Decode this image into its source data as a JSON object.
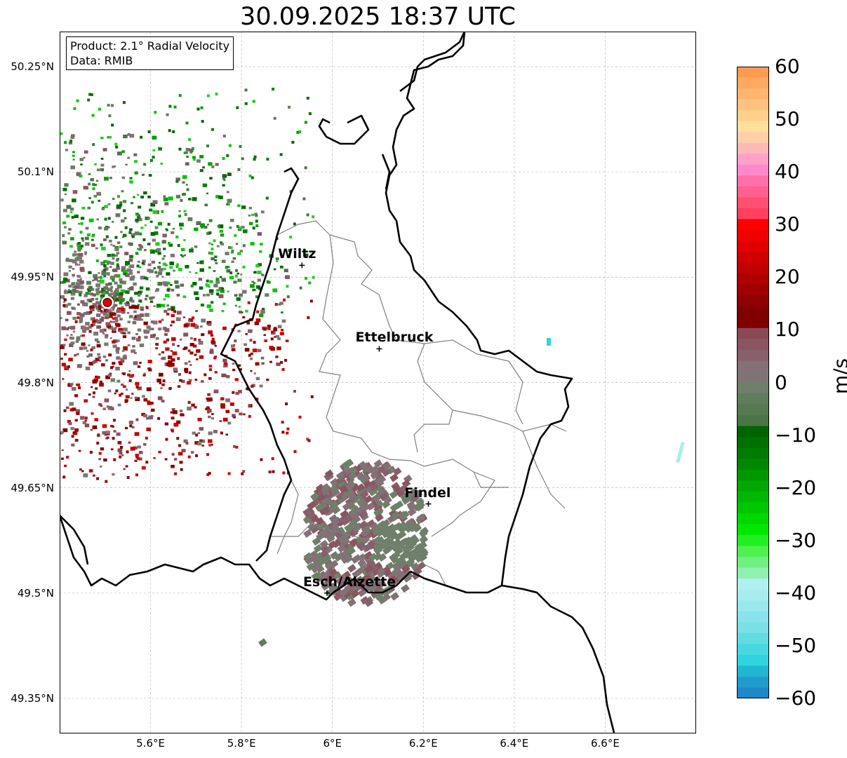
{
  "title": "30.09.2025 18:37 UTC",
  "info": {
    "product": "Product: 2.1° Radial Velocity",
    "data_source": "Data: RMIB"
  },
  "map": {
    "lon_range": [
      5.4,
      6.8
    ],
    "lat_range": [
      49.3,
      50.3
    ],
    "lat_ticks": [
      {
        "value": 50.25,
        "label": "50.25°N"
      },
      {
        "value": 50.1,
        "label": "50.1°N"
      },
      {
        "value": 49.95,
        "label": "49.95°N"
      },
      {
        "value": 49.8,
        "label": "49.8°N"
      },
      {
        "value": 49.65,
        "label": "49.65°N"
      },
      {
        "value": 49.5,
        "label": "49.5°N"
      },
      {
        "value": 49.35,
        "label": "49.35°N"
      }
    ],
    "lon_ticks": [
      {
        "value": 5.6,
        "label": "5.6°E"
      },
      {
        "value": 5.8,
        "label": "5.8°E"
      },
      {
        "value": 6.0,
        "label": "6°E"
      },
      {
        "value": 6.2,
        "label": "6.2°E"
      },
      {
        "value": 6.4,
        "label": "6.4°E"
      },
      {
        "value": 6.6,
        "label": "6.6°E"
      }
    ],
    "radar_site": {
      "lon": 5.505,
      "lat": 49.914
    },
    "cities": [
      {
        "name": "Wiltz",
        "lon": 5.933,
        "lat": 49.967
      },
      {
        "name": "Ettelbruck",
        "lon": 6.103,
        "lat": 49.848
      },
      {
        "name": "Findel",
        "lon": 6.211,
        "lat": 49.627
      },
      {
        "name": "Esch/Alzette",
        "lon": 5.988,
        "lat": 49.5
      }
    ],
    "border_color": "#000000",
    "canton_color": "#808080"
  },
  "colorbar": {
    "unit": "m/s",
    "min": -60,
    "max": 60,
    "ticks": [
      {
        "value": 60,
        "label": "60"
      },
      {
        "value": 50,
        "label": "50"
      },
      {
        "value": 40,
        "label": "40"
      },
      {
        "value": 30,
        "label": "30"
      },
      {
        "value": 20,
        "label": "20"
      },
      {
        "value": 10,
        "label": "10"
      },
      {
        "value": 0,
        "label": "0"
      },
      {
        "value": -10,
        "label": "−10"
      },
      {
        "value": -20,
        "label": "−20"
      },
      {
        "value": -30,
        "label": "−30"
      },
      {
        "value": -40,
        "label": "−40"
      },
      {
        "value": -50,
        "label": "−50"
      },
      {
        "value": -60,
        "label": "−60"
      }
    ],
    "colors_top_to_bottom": [
      "#ff9a50",
      "#ffa860",
      "#ffb56e",
      "#ffc17e",
      "#ffd08c",
      "#ffe09a",
      "#ffd0a8",
      "#ffb8b8",
      "#ffa0c8",
      "#ff88cc",
      "#ff70a8",
      "#ff6090",
      "#ff5070",
      "#ff4060",
      "#ff0000",
      "#f00000",
      "#e00000",
      "#d00000",
      "#c00000",
      "#b00000",
      "#a00000",
      "#900000",
      "#800000",
      "#800000",
      "#8a4a55",
      "#8a5560",
      "#86606b",
      "#847076",
      "#7e7474",
      "#6e7f6a",
      "#5e7e5a",
      "#557a50",
      "#4a7546",
      "#006400",
      "#007000",
      "#007c00",
      "#008800",
      "#009800",
      "#00a800",
      "#00b800",
      "#00c800",
      "#00d800",
      "#00e800",
      "#20f020",
      "#50f050",
      "#70f080",
      "#90f0b0",
      "#b0f0f0",
      "#a8ecf0",
      "#98e8ec",
      "#88e4ea",
      "#78e0e6",
      "#60dce2",
      "#48d8e0",
      "#30d4de",
      "#20b8d0",
      "#209ccc",
      "#1e88c8"
    ]
  }
}
